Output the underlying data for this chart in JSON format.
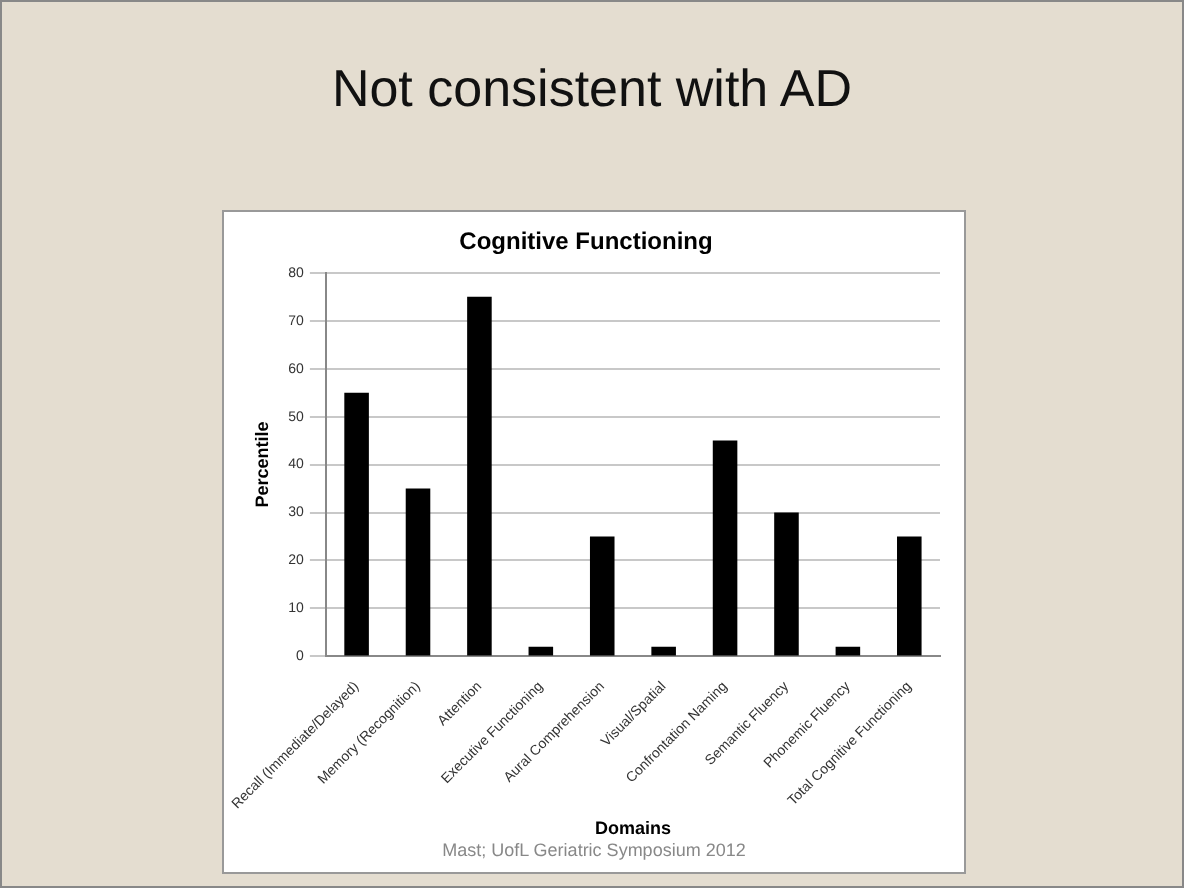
{
  "chart_data": {
    "type": "bar",
    "title": "Cognitive Functioning",
    "xlabel": "Domains",
    "ylabel": "Percentile",
    "categories": [
      "Recall (Immediate/Delayed)",
      "Memory (Recognition)",
      "Attention",
      "Executive Functioning",
      "Aural Comprehension",
      "Visual/Spatial",
      "Confrontation Naming",
      "Semantic Fluency",
      "Phonemic Fluency",
      "Total Cognitive Functioning"
    ],
    "values": [
      55,
      35,
      75,
      2,
      25,
      2,
      45,
      30,
      2,
      25
    ],
    "color": "#000000",
    "ylim": [
      0,
      80
    ],
    "yticks": [
      0,
      10,
      20,
      30,
      40,
      50,
      60,
      70,
      80
    ],
    "grid": "y",
    "legend": false,
    "annotations": [
      "Not consistent with AD",
      "Mast; UofL Geriatric Symposium 2012"
    ]
  }
}
